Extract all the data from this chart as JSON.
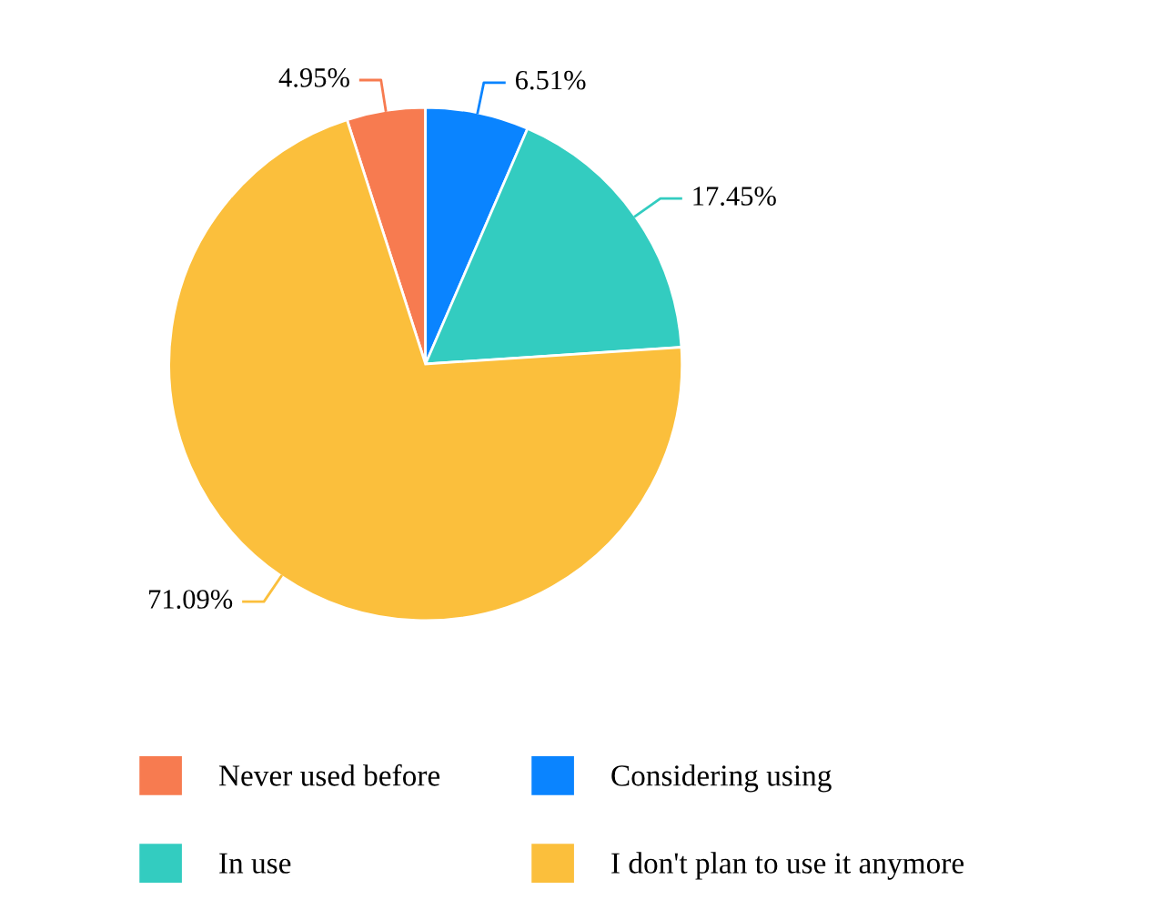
{
  "chart_data": {
    "type": "pie",
    "categories": [
      "Never used before",
      "Considering using",
      "In use",
      "I don't plan to use it anymore"
    ],
    "values": [
      4.95,
      6.51,
      17.45,
      71.09
    ],
    "value_labels": [
      "4.95%",
      "6.51%",
      "17.45%",
      "71.09%"
    ],
    "colors": [
      "#f77b50",
      "#0a84ff",
      "#33ccc0",
      "#fbbf3c"
    ],
    "legend": "bottom"
  }
}
